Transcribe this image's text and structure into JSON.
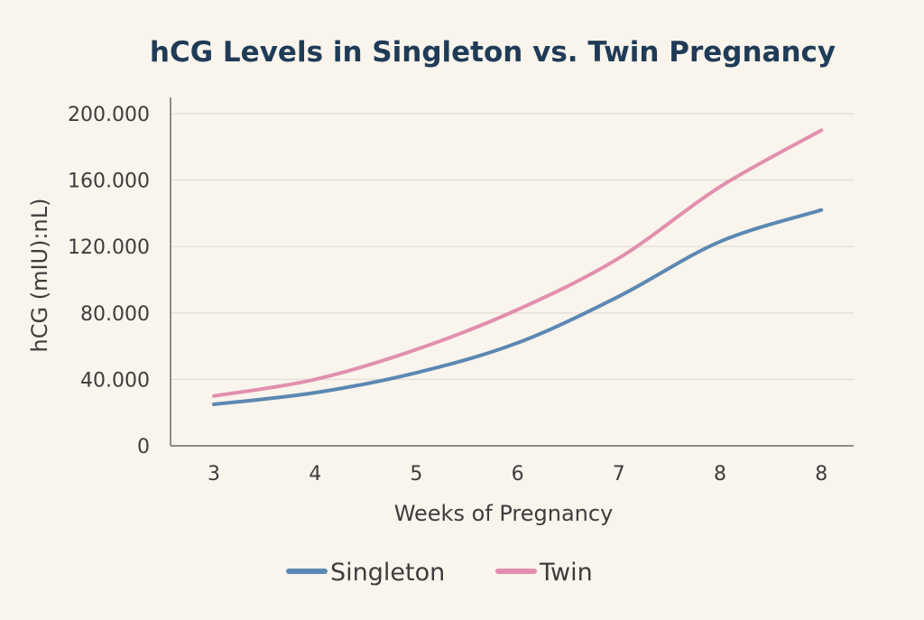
{
  "chart_data": {
    "type": "line",
    "title": "hCG Levels in Singleton vs. Twin Pregnancy",
    "xlabel": "Weeks of Pregnancy",
    "ylabel": "hCG (mIU):nL)",
    "x": [
      "3",
      "4",
      "5",
      "6",
      "7",
      "8",
      "8"
    ],
    "yticks": [
      "0",
      "40.000",
      "80.000",
      "120.000",
      "160.000",
      "200.000"
    ],
    "ytick_values": [
      0,
      40000,
      80000,
      120000,
      160000,
      200000
    ],
    "ylim": [
      0,
      200000
    ],
    "grid": true,
    "legend_position": "bottom-center",
    "series": [
      {
        "name": "Singleton",
        "color": "#5b88b3",
        "values": [
          25000,
          32000,
          44000,
          62000,
          90000,
          123000,
          142000
        ]
      },
      {
        "name": "Twin",
        "color": "#e28fae",
        "values": [
          30000,
          40000,
          58000,
          82000,
          113000,
          156000,
          190000
        ]
      }
    ],
    "colors": {
      "background": "#f9f4ec",
      "title": "#1f3b57",
      "grid": "#e3ddd3",
      "axis": "#8c8c8c"
    }
  }
}
